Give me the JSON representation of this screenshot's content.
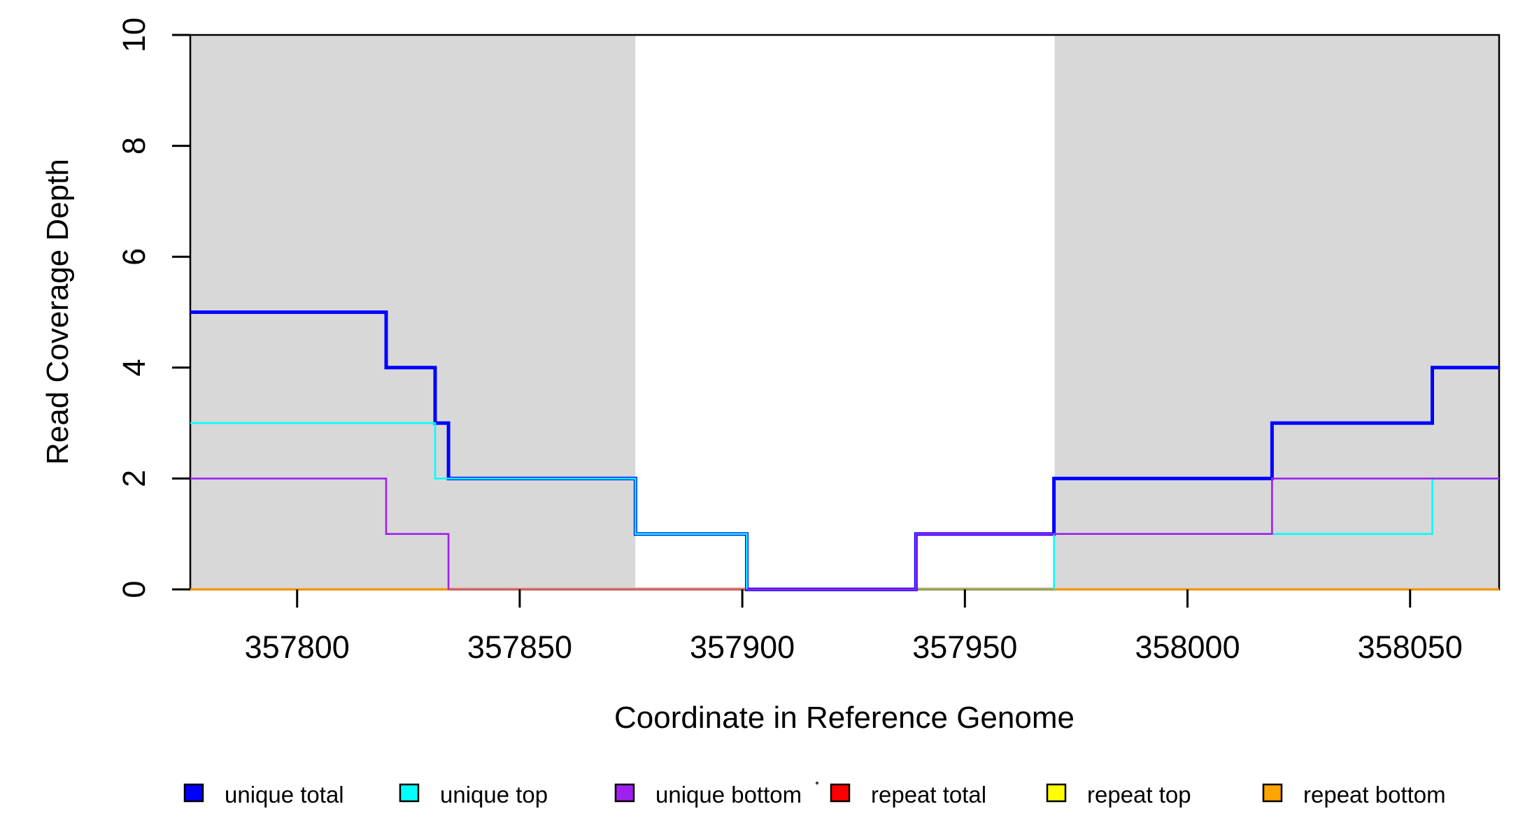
{
  "chart_data": {
    "type": "line",
    "subtype": "step-coverage",
    "title": "",
    "xlabel": "Coordinate in Reference Genome",
    "ylabel": "Read Coverage Depth",
    "x_range": [
      357776,
      358070
    ],
    "y_range": [
      0,
      10
    ],
    "grid": false,
    "x_ticks": [
      {
        "value": 357800,
        "label": "357800"
      },
      {
        "value": 357850,
        "label": "357850"
      },
      {
        "value": 357900,
        "label": "357900"
      },
      {
        "value": 357950,
        "label": "357950"
      },
      {
        "value": 358000,
        "label": "358000"
      },
      {
        "value": 358050,
        "label": "358050"
      }
    ],
    "y_ticks": [
      {
        "value": 0,
        "label": "0"
      },
      {
        "value": 2,
        "label": "2"
      },
      {
        "value": 4,
        "label": "4"
      },
      {
        "value": 6,
        "label": "6"
      },
      {
        "value": 8,
        "label": "8"
      },
      {
        "value": 10,
        "label": "10"
      }
    ],
    "repeat_regions_color": "#D8D8D8",
    "repeat_regions": [
      {
        "start": 357776,
        "end": 357876
      },
      {
        "start": 357970,
        "end": 358070
      }
    ],
    "series": [
      {
        "name": "unique total",
        "color": "#0000FF",
        "width": 5,
        "paths": [
          [
            [
              357776,
              5
            ],
            [
              357820,
              5
            ],
            [
              357820,
              4
            ],
            [
              357831,
              4
            ],
            [
              357831,
              3
            ],
            [
              357834,
              3
            ],
            [
              357834,
              2
            ],
            [
              357876,
              2
            ],
            [
              357876,
              1
            ],
            [
              357901,
              1
            ],
            [
              357901,
              0
            ],
            [
              357939,
              0
            ],
            [
              357939,
              1
            ],
            [
              357970,
              1
            ],
            [
              357970,
              2
            ],
            [
              358019,
              2
            ],
            [
              358019,
              3
            ],
            [
              358055,
              3
            ],
            [
              358055,
              4
            ],
            [
              358070,
              4
            ]
          ]
        ]
      },
      {
        "name": "unique top",
        "color": "#00FFFF",
        "width": 2.6,
        "paths": [
          [
            [
              357776,
              3
            ],
            [
              357831,
              3
            ],
            [
              357831,
              2
            ],
            [
              357876,
              2
            ],
            [
              357876,
              1
            ],
            [
              357901,
              1
            ],
            [
              357901,
              0
            ]
          ],
          [
            [
              357970,
              0
            ],
            [
              357970,
              1
            ],
            [
              358055,
              1
            ],
            [
              358055,
              2
            ],
            [
              358070,
              2
            ]
          ]
        ]
      },
      {
        "name": "unique bottom",
        "color": "#A020F0",
        "width": 2.6,
        "paths": [
          [
            [
              357776,
              2
            ],
            [
              357820,
              2
            ],
            [
              357820,
              1
            ],
            [
              357834,
              1
            ],
            [
              357834,
              0
            ]
          ],
          [
            [
              357901,
              0
            ],
            [
              357939,
              0
            ],
            [
              357939,
              1
            ],
            [
              358019,
              1
            ],
            [
              358019,
              2
            ],
            [
              358070,
              2
            ]
          ]
        ]
      },
      {
        "name": "repeat total",
        "color": "#FF0000",
        "width": 2.6,
        "constant_value": 0,
        "paths": []
      },
      {
        "name": "repeat top",
        "color": "#FFFF00",
        "width": 2.6,
        "constant_value": 0,
        "paths": []
      },
      {
        "name": "repeat bottom",
        "color": "#FFA500",
        "width": 2.6,
        "constant_value": 0,
        "paths": []
      }
    ],
    "zero_line_segments": [
      {
        "x1": 357776,
        "x2": 357834,
        "color": "#F59400"
      },
      {
        "x1": 357834,
        "x2": 357901,
        "color": "#C9605A",
        "top_edge": "#EDBEB8"
      },
      {
        "x1": 357939,
        "x2": 357970,
        "color": "#8F9E4E",
        "top_edge": "#E6CCC2"
      },
      {
        "x1": 357970,
        "x2": 358070,
        "color": "#F59400"
      }
    ],
    "legend": {
      "position": "bottom",
      "items": [
        {
          "label": "unique total",
          "color": "#0000FF"
        },
        {
          "label": "unique top",
          "color": "#00FFFF"
        },
        {
          "label": "unique bottom",
          "color": "#A020F0"
        },
        {
          "label": "repeat total",
          "color": "#FF0000"
        },
        {
          "label": "repeat top",
          "color": "#FFFF00"
        },
        {
          "label": "repeat bottom",
          "color": "#FFA500"
        }
      ]
    }
  }
}
